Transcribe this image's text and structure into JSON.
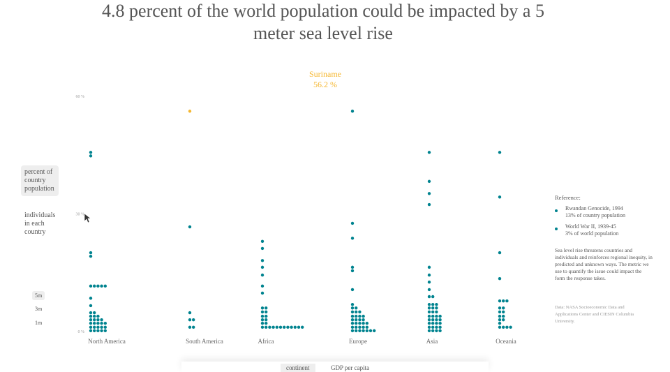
{
  "chart_data": {
    "type": "dot",
    "title": "4.8 percent of the world population could be impacted by a 5 meter sea level rise",
    "categories": [
      "North America",
      "South America",
      "Africa",
      "Europe",
      "Asia",
      "Oceania"
    ],
    "color": "#00838f",
    "values": [
      [
        45.7,
        44.8,
        20.1,
        19.2,
        11.6,
        11.6,
        11.6,
        11.6,
        11.6,
        8.5,
        6.6,
        4.8,
        4.8,
        3.9,
        3.9,
        3.9,
        3.0,
        3.0,
        3.0,
        3.0,
        2.1,
        2.1,
        2.1,
        2.1,
        2.1,
        1.1,
        1.1,
        1.1,
        1.1,
        1.1,
        0.2,
        0.2,
        0.2,
        0.2,
        0.2
      ],
      [
        56.2,
        26.7,
        4.8,
        3.0,
        3.0,
        1.1,
        1.1
      ],
      [
        23.0,
        21.2,
        18.1,
        16.4,
        14.4,
        11.6,
        9.8,
        6.0,
        6.0,
        5.0,
        5.0,
        3.9,
        3.9,
        3.0,
        3.0,
        2.1,
        2.1,
        1.1,
        1.1,
        1.1,
        1.1,
        1.1,
        1.1,
        1.1,
        1.1,
        1.1,
        1.1,
        1.1,
        1.1
      ],
      [
        56.2,
        27.6,
        23.8,
        16.4,
        15.5,
        10.7,
        6.9,
        6.0,
        6.0,
        5.0,
        5.0,
        5.0,
        3.9,
        3.9,
        3.9,
        3.9,
        3.0,
        3.0,
        3.0,
        3.0,
        2.1,
        2.1,
        2.1,
        2.1,
        2.1,
        1.1,
        1.1,
        1.1,
        1.1,
        1.1,
        0.2,
        0.2,
        0.2,
        0.2,
        0.2,
        0.2,
        0.2
      ],
      [
        45.7,
        38.3,
        35.2,
        32.4,
        16.4,
        14.4,
        12.6,
        10.7,
        8.9,
        8.9,
        6.9,
        6.9,
        6.9,
        6.0,
        6.0,
        6.0,
        5.0,
        5.0,
        5.0,
        3.9,
        3.9,
        3.9,
        3.9,
        3.0,
        3.0,
        3.0,
        3.0,
        2.1,
        2.1,
        2.1,
        2.1,
        1.1,
        1.1,
        1.1,
        1.1,
        0.2,
        0.2,
        0.2,
        0.2
      ],
      [
        45.7,
        34.3,
        20.1,
        13.5,
        7.8,
        7.8,
        7.8,
        6.0,
        6.0,
        5.0,
        5.0,
        3.9,
        3.9,
        3.0,
        3.0,
        2.1,
        1.1,
        1.1,
        1.1,
        1.1
      ]
    ],
    "highlight": {
      "category": 1,
      "index": 0,
      "color": "#f5b731"
    },
    "annotation": {
      "title": "Suriname",
      "text": "56.2 %"
    },
    "ylim": [
      0,
      60
    ],
    "yticks": [
      {
        "value": 0,
        "label": "0 %"
      },
      {
        "value": 30,
        "label": "30 %"
      },
      {
        "value": 60,
        "label": "60 %"
      }
    ],
    "grid": false
  },
  "controls": {
    "measures": [
      "percent of country population",
      "individuals in each country"
    ],
    "levels": [
      "5m",
      "3m",
      "1m"
    ],
    "tabs": [
      "continent",
      "GDP per capita"
    ]
  },
  "reference": {
    "title": "Reference:",
    "items": [
      {
        "name": "Rwandan Genocide, 1994",
        "detail": "13% of country population"
      },
      {
        "name": "World War II, 1939-45",
        "detail": "3% of world population"
      }
    ],
    "text": "Sea level rise threatens countries and individuals and reinforces regional inequity, in predicted and unknown ways. The metric we use to quantify the issue could impact the form the response takes.",
    "source": "Data: NASA Socioeconomic Data and Applications Center and CIESIN Columbia University."
  }
}
